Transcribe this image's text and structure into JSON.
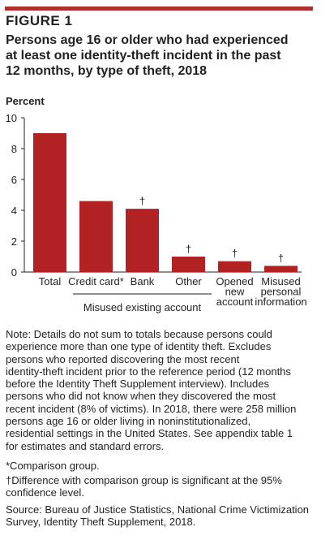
{
  "figure": {
    "label": "FIGURE 1",
    "title_lines": [
      "Persons age 16 or older who had experienced",
      "at least one identity-theft incident in the past",
      "12 months, by type of theft, 2018"
    ]
  },
  "colors": {
    "bar": "#b22222",
    "rule": "#b32d2e",
    "axis": "#231f20"
  },
  "chart_data": {
    "type": "bar",
    "ylabel": "Percent",
    "ylim": [
      0,
      10
    ],
    "yticks": [
      0,
      2,
      4,
      6,
      8,
      10
    ],
    "grid": false,
    "legend": "none",
    "categories": [
      [
        "Total"
      ],
      [
        "Credit card*"
      ],
      [
        "Bank"
      ],
      [
        "Other"
      ],
      [
        "Opened",
        "new",
        "account"
      ],
      [
        "Misused",
        "personal",
        "information"
      ]
    ],
    "values": [
      9.0,
      4.6,
      4.1,
      1.0,
      0.7,
      0.4
    ],
    "markers": [
      "",
      "",
      "†",
      "†",
      "†",
      "†"
    ],
    "group_label": "Misused existing account",
    "group_span": [
      1,
      3
    ]
  },
  "notes": {
    "main_lines": [
      "Note: Details do not sum to totals because persons could",
      "experience more than one type of identity theft. Excludes",
      "persons who reported discovering the most recent",
      "identity-theft incident prior to the reference period (12 months",
      "before the Identity Theft Supplement interview). Includes",
      "persons who did not know when they discovered the most",
      "recent incident (8% of victims). In 2018, there were 258 million",
      "persons age 16 or older living in noninstitutionalized,",
      "residential settings in the United States. See appendix table 1",
      "for estimates and standard errors."
    ],
    "comparison_lines": [
      "*Comparison group."
    ],
    "significance_lines": [
      "†Difference with comparison group is significant at the 95%",
      "confidence level."
    ],
    "source_lines": [
      "Source: Bureau of Justice Statistics, National Crime Victimization",
      "Survey, Identity Theft Supplement, 2018."
    ]
  }
}
